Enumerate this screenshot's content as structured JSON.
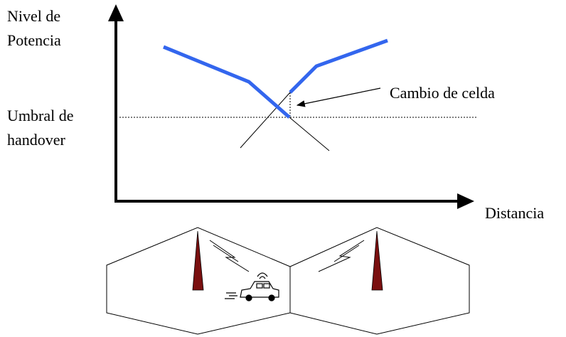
{
  "y_axis_label": [
    "Nivel de",
    "Potencia"
  ],
  "threshold_label": [
    "Umbral de",
    "handover"
  ],
  "annotation": "Cambio de celda",
  "x_axis_label": "Distancia"
}
